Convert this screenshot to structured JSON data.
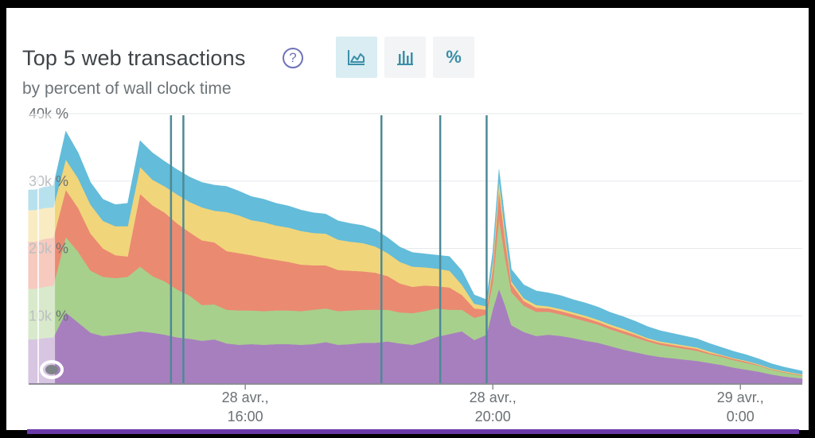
{
  "header": {
    "title": "Top 5 web transactions",
    "subtitle": "by percent of wall clock time",
    "help_glyph": "?",
    "view_buttons": [
      {
        "name": "area-chart-icon",
        "active": true
      },
      {
        "name": "bar-chart-icon",
        "active": false
      },
      {
        "name": "percent-icon",
        "label": "%",
        "active": false
      }
    ]
  },
  "chart_data": {
    "type": "area",
    "stacked": true,
    "title": "Top 5 web transactions",
    "subtitle": "by percent of wall clock time",
    "y_ticks": [
      "40k %",
      "30k %",
      "20k %",
      "10k %"
    ],
    "y_tick_values": [
      40000,
      30000,
      20000,
      10000
    ],
    "ylim": [
      0,
      40000
    ],
    "x_ticks": [
      {
        "line1": "28 avr.,",
        "line2": "16:00",
        "hour": 16
      },
      {
        "line1": "28 avr.,",
        "line2": "20:00",
        "hour": 20
      },
      {
        "line1": "29 avr.,",
        "line2": "0:00",
        "hour": 24
      }
    ],
    "xlim": [
      12.5,
      25.0
    ],
    "grid": true,
    "deploy_markers_hour": [
      14.8,
      15.0,
      18.2,
      19.15,
      19.9
    ],
    "x": [
      12.5,
      12.6,
      12.75,
      12.9,
      13.1,
      13.3,
      13.5,
      13.7,
      13.9,
      14.1,
      14.3,
      14.5,
      14.7,
      14.9,
      15.1,
      15.3,
      15.5,
      15.7,
      15.9,
      16.1,
      16.3,
      16.5,
      16.7,
      16.9,
      17.1,
      17.3,
      17.5,
      17.7,
      17.9,
      18.1,
      18.3,
      18.5,
      18.7,
      18.9,
      19.1,
      19.3,
      19.5,
      19.7,
      19.9,
      20.0,
      20.1,
      20.2,
      20.3,
      20.5,
      20.7,
      20.9,
      21.1,
      21.3,
      21.5,
      21.7,
      21.9,
      22.1,
      22.3,
      22.5,
      22.7,
      22.9,
      23.1,
      23.3,
      23.5,
      23.7,
      23.9,
      24.1,
      24.3,
      24.5,
      24.7,
      25.0
    ],
    "series": [
      {
        "name": "",
        "color": "#a77fbf",
        "values": [
          6500,
          6500,
          6700,
          6800,
          10500,
          9000,
          7500,
          7000,
          7200,
          7400,
          7700,
          7500,
          7200,
          6800,
          6600,
          6300,
          6500,
          5900,
          5700,
          5800,
          5700,
          5800,
          5800,
          5700,
          5800,
          6100,
          5700,
          5800,
          6000,
          6000,
          6200,
          5900,
          5700,
          6200,
          6900,
          7300,
          7700,
          6400,
          7200,
          11000,
          14000,
          11500,
          8600,
          7600,
          7000,
          7200,
          7000,
          6700,
          6300,
          6000,
          5500,
          5000,
          4600,
          4200,
          3900,
          3700,
          3500,
          3300,
          3000,
          2700,
          2300,
          2000,
          1700,
          1300,
          1000,
          700
        ]
      },
      {
        "name": "",
        "color": "#a8d08d",
        "values": [
          7500,
          7500,
          7600,
          7700,
          11200,
          10500,
          9200,
          8800,
          8400,
          8400,
          9600,
          8400,
          7900,
          7100,
          6400,
          5300,
          5200,
          5000,
          5100,
          5000,
          5000,
          5000,
          5000,
          5000,
          5100,
          5000,
          5000,
          5000,
          4900,
          4900,
          4700,
          4600,
          4700,
          4500,
          4200,
          3600,
          3200,
          3300,
          3000,
          4000,
          10500,
          7000,
          4900,
          3900,
          3600,
          3400,
          3200,
          3000,
          2900,
          2700,
          2500,
          2400,
          2200,
          2000,
          1800,
          1700,
          1600,
          1500,
          1300,
          1200,
          1100,
          1000,
          900,
          700,
          600,
          400
        ]
      },
      {
        "name": "",
        "color": "#ea8a71",
        "values": [
          7000,
          7000,
          7100,
          7100,
          7000,
          6500,
          5500,
          4200,
          3400,
          3000,
          10800,
          10500,
          10200,
          9800,
          9400,
          9600,
          9200,
          8700,
          8500,
          8200,
          7900,
          7500,
          7200,
          6900,
          6600,
          6400,
          6100,
          5900,
          5700,
          5500,
          5000,
          4300,
          3900,
          3800,
          3300,
          3300,
          2200,
          1400,
          700,
          2000,
          4200,
          2700,
          1200,
          700,
          600,
          500,
          500,
          500,
          500,
          400,
          400,
          400,
          400,
          300,
          300,
          300,
          300,
          300,
          200,
          200,
          200,
          200,
          100,
          100,
          100,
          100
        ]
      },
      {
        "name": "",
        "color": "#f1d57a",
        "values": [
          4700,
          4700,
          4600,
          4500,
          4500,
          4400,
          4300,
          4100,
          4300,
          4500,
          4000,
          3800,
          3900,
          4300,
          4500,
          4900,
          4700,
          5800,
          5600,
          5200,
          5300,
          5100,
          5100,
          5000,
          4800,
          4700,
          4500,
          4300,
          4200,
          3900,
          3400,
          3200,
          3000,
          2700,
          2600,
          2500,
          1500,
          700,
          500,
          1000,
          1500,
          1000,
          400,
          400,
          400,
          300,
          300,
          300,
          300,
          300,
          300,
          300,
          200,
          200,
          200,
          200,
          200,
          200,
          200,
          100,
          100,
          100,
          100,
          100,
          100,
          100
        ]
      },
      {
        "name": "",
        "color": "#63bcd9",
        "values": [
          3000,
          3000,
          3100,
          3200,
          4200,
          3800,
          3300,
          3200,
          3200,
          3400,
          3900,
          4000,
          3700,
          3700,
          3700,
          3700,
          3800,
          3800,
          3600,
          3500,
          3400,
          3300,
          3200,
          3100,
          3000,
          2900,
          2800,
          2700,
          2600,
          2500,
          2300,
          2200,
          2100,
          2000,
          2000,
          2100,
          2100,
          1300,
          1000,
          1500,
          1500,
          1800,
          1800,
          2000,
          2100,
          2000,
          2000,
          1900,
          1900,
          1900,
          1800,
          1800,
          1800,
          1700,
          1600,
          1500,
          1400,
          1300,
          1200,
          1100,
          1000,
          900,
          800,
          700,
          600,
          500
        ]
      }
    ]
  }
}
